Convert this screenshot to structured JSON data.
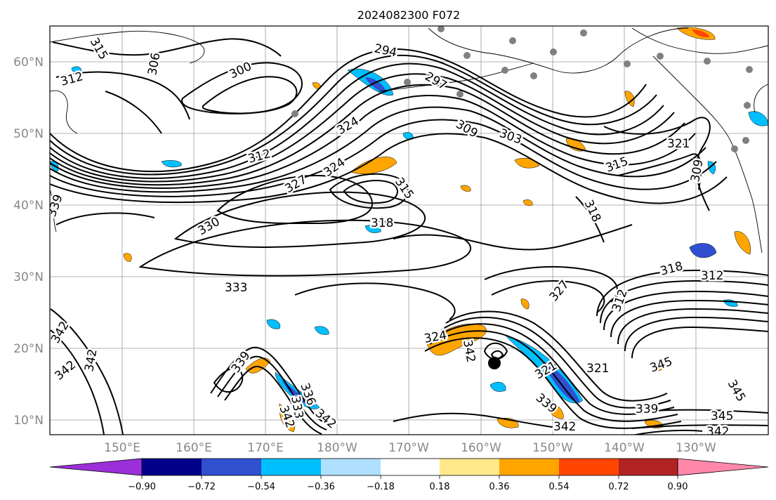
{
  "title": "2024082300 F072",
  "lat_ticks": [
    "60°N",
    "50°N",
    "40°N",
    "30°N",
    "20°N",
    "10°N"
  ],
  "lon_ticks": [
    "150°E",
    "160°E",
    "170°E",
    "180°W",
    "170°W",
    "160°W",
    "150°W",
    "140°W",
    "130°W"
  ],
  "contour_labels": [
    "315",
    "306",
    "312",
    "300",
    "294",
    "297",
    "309",
    "303",
    "324",
    "312",
    "327",
    "324",
    "315",
    "321",
    "315",
    "309",
    "318",
    "330",
    "318",
    "339",
    "333",
    "327",
    "318",
    "312",
    "312",
    "342",
    "342",
    "342",
    "324",
    "342",
    "339",
    "336",
    "333",
    "342",
    "342",
    "342",
    "339",
    "345",
    "321",
    "339",
    "345",
    "342",
    "345",
    "321"
  ],
  "colorbar": {
    "ticks": [
      "−0.90",
      "−0.72",
      "−0.54",
      "−0.36",
      "−0.18",
      "0.18",
      "0.36",
      "0.54",
      "0.72",
      "0.90"
    ],
    "colors": [
      "#9b30d9",
      "#00008b",
      "#3050d0",
      "#00bfff",
      "#b0e0ff",
      "#ffffff",
      "#ffe98a",
      "#ffa500",
      "#ff4500",
      "#b22222",
      "#ff88aa"
    ]
  }
}
